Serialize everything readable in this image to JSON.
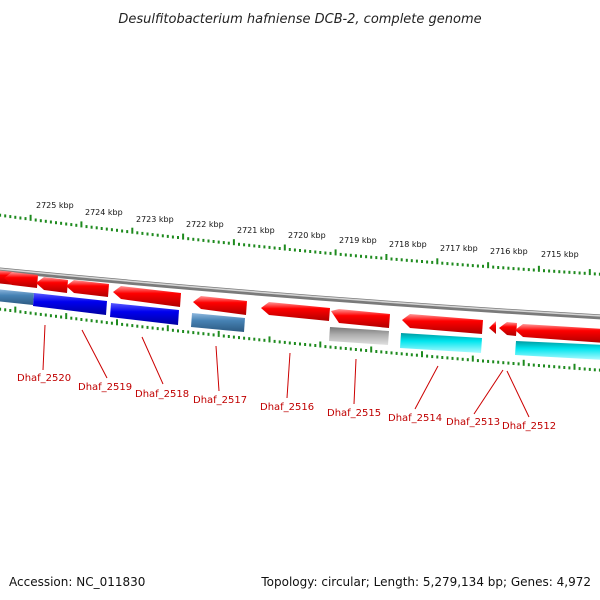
{
  "title": "Desulfitobacterium hafniense DCB-2, complete genome",
  "footer": {
    "accession": "Accession: NC_011830",
    "summary": "Topology: circular; Length: 5,279,134 bp; Genes: 4,972"
  },
  "kbp_labels": [
    "2725 kbp",
    "2724 kbp",
    "2723 kbp",
    "2722 kbp",
    "2721 kbp",
    "2720 kbp",
    "2719 kbp",
    "2718 kbp",
    "2717 kbp",
    "2716 kbp",
    "2715 kbp"
  ],
  "gene_labels": [
    "Dhaf_2520",
    "Dhaf_2519",
    "Dhaf_2518",
    "Dhaf_2517",
    "Dhaf_2516",
    "Dhaf_2515",
    "Dhaf_2514",
    "Dhaf_2513",
    "Dhaf_2512"
  ],
  "colors": {
    "backbone": "#8c8c8c",
    "tick": "#1e8a1e",
    "gene_red": "#ee0000",
    "cog_blue": "#0000ee",
    "cog_steel": "#4682b4",
    "cog_gray": "#a9a9a9",
    "cog_cyan": "#00e5ee",
    "label": "#c00000"
  }
}
